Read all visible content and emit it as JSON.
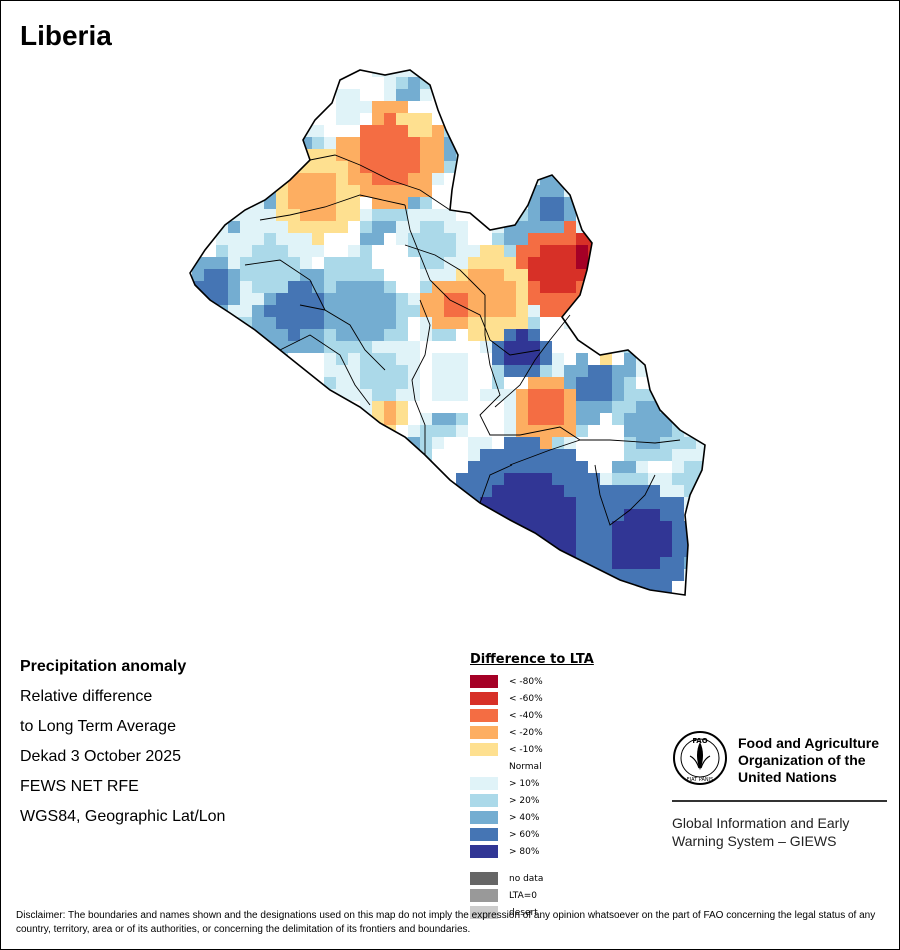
{
  "title": "Liberia",
  "info": {
    "line1": "Precipitation anomaly",
    "line2": "Relative difference",
    "line3": "to Long Term Average",
    "line4": "Dekad 3 October 2025",
    "line5": "FEWS NET RFE",
    "line6": "WGS84, Geographic Lat/Lon"
  },
  "legend": {
    "title": "Difference to LTA",
    "classes": [
      {
        "label": "< -80%",
        "color": "#a50026"
      },
      {
        "label": "< -60%",
        "color": "#d73027"
      },
      {
        "label": "< -40%",
        "color": "#f46d43"
      },
      {
        "label": "< -20%",
        "color": "#fdae61"
      },
      {
        "label": "< -10%",
        "color": "#fee090"
      },
      {
        "label": "Normal",
        "color": "#ffffff"
      },
      {
        "label": "> 10%",
        "color": "#e0f3f8"
      },
      {
        "label": "> 20%",
        "color": "#abd9e9"
      },
      {
        "label": "> 40%",
        "color": "#74add1"
      },
      {
        "label": "> 60%",
        "color": "#4575b4"
      },
      {
        "label": "> 80%",
        "color": "#313695"
      }
    ],
    "extra": [
      {
        "label": "no data",
        "color": "#666666"
      },
      {
        "label": "LTA=0",
        "color": "#999999"
      },
      {
        "label": "desert",
        "color": "#cccccc"
      }
    ]
  },
  "fao": {
    "name": "Food and Agriculture Organization of the United Nations",
    "system": "Global Information and Early Warning System – GIEWS",
    "logo_text": "FAO",
    "motto": "FIAT PANIS"
  },
  "disclaimer": "Disclaimer: The boundaries and names shown and the designations used on this map do not imply the expression of any opinion whatsoever on the part of FAO concerning the legal status of any country, territory, area or of its authorities, or concerning the delimitation of its frontiers and boundaries."
}
